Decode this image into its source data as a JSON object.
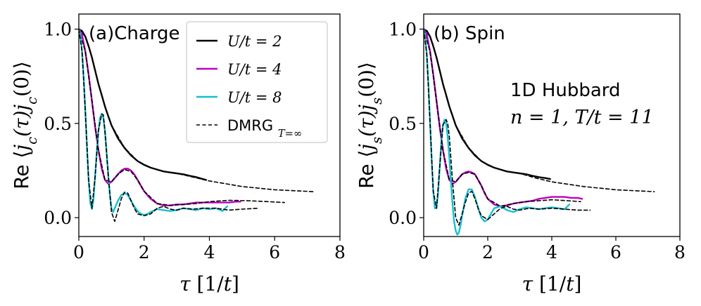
{
  "chart_data": [
    {
      "type": "line",
      "panel_label": "(a)Charge",
      "ylabel_prefix": "Re",
      "ylabel": "⟨j_c(τ) j_c(0)⟩",
      "xlabel": "τ [1/t]",
      "xlim": [
        0,
        8
      ],
      "ylim": [
        -0.1,
        1.08
      ],
      "xticks": [
        "0",
        "2",
        "4",
        "6",
        "8"
      ],
      "yticks": [
        "0.0",
        "0.5",
        "1.0"
      ],
      "legend": {
        "position": "top-right",
        "entries": [
          {
            "label": "U/t = 2",
            "color": "#000000",
            "style": "solid"
          },
          {
            "label": "U/t = 4",
            "color": "#bf00bf",
            "style": "solid"
          },
          {
            "label": "U/t = 8",
            "color": "#17becf",
            "style": "solid"
          },
          {
            "label": "DMRG",
            "sub": "T=∞",
            "color": "#000000",
            "style": "dashed"
          }
        ]
      },
      "series": [
        {
          "name": "U/t = 2",
          "color": "#000000",
          "style": "solid",
          "x": [
            0,
            0.1,
            0.2,
            0.3,
            0.4,
            0.5,
            0.6,
            0.7,
            0.8,
            0.9,
            1.0,
            1.2,
            1.4,
            1.6,
            1.8,
            2.0,
            2.2,
            2.4,
            2.6,
            2.8,
            3.0,
            3.2,
            3.4,
            3.6,
            3.8,
            3.9
          ],
          "y": [
            1.0,
            0.99,
            0.96,
            0.91,
            0.85,
            0.78,
            0.71,
            0.65,
            0.59,
            0.54,
            0.49,
            0.42,
            0.37,
            0.33,
            0.3,
            0.28,
            0.265,
            0.255,
            0.245,
            0.24,
            0.235,
            0.23,
            0.222,
            0.215,
            0.205,
            0.2
          ]
        },
        {
          "name": "U/t = 2 DMRG",
          "color": "#000000",
          "style": "dashed",
          "x": [
            0,
            0.2,
            0.4,
            0.6,
            0.8,
            1.0,
            1.4,
            1.8,
            2.2,
            2.6,
            3.0,
            3.5,
            4.0,
            5.0,
            6.0,
            7.2
          ],
          "y": [
            1.0,
            0.96,
            0.85,
            0.71,
            0.59,
            0.49,
            0.37,
            0.3,
            0.265,
            0.245,
            0.235,
            0.215,
            0.195,
            0.165,
            0.148,
            0.138
          ]
        },
        {
          "name": "U/t = 4",
          "color": "#bf00bf",
          "style": "solid",
          "x": [
            0,
            0.1,
            0.2,
            0.3,
            0.4,
            0.5,
            0.6,
            0.7,
            0.8,
            0.9,
            1.0,
            1.1,
            1.2,
            1.3,
            1.4,
            1.5,
            1.6,
            1.7,
            1.8,
            1.9,
            2.0,
            2.2,
            2.4,
            2.6,
            2.8,
            3.0,
            3.2,
            3.4,
            3.6,
            3.8,
            4.0,
            4.2,
            4.4,
            4.6,
            4.8,
            4.95
          ],
          "y": [
            1.0,
            0.97,
            0.88,
            0.76,
            0.62,
            0.48,
            0.36,
            0.26,
            0.2,
            0.18,
            0.19,
            0.21,
            0.23,
            0.25,
            0.26,
            0.26,
            0.25,
            0.23,
            0.2,
            0.17,
            0.14,
            0.1,
            0.075,
            0.065,
            0.065,
            0.07,
            0.07,
            0.075,
            0.08,
            0.08,
            0.08,
            0.08,
            0.08,
            0.08,
            0.085,
            0.085
          ]
        },
        {
          "name": "U/t = 4 DMRG",
          "color": "#000000",
          "style": "dashed",
          "x": [
            0,
            0.2,
            0.4,
            0.6,
            0.8,
            1.0,
            1.2,
            1.4,
            1.6,
            1.8,
            2.0,
            2.4,
            2.8,
            3.2,
            3.6,
            4.0,
            4.6,
            5.2,
            5.8,
            6.3
          ],
          "y": [
            1.0,
            0.88,
            0.62,
            0.36,
            0.2,
            0.19,
            0.23,
            0.255,
            0.245,
            0.2,
            0.14,
            0.075,
            0.065,
            0.07,
            0.075,
            0.085,
            0.092,
            0.09,
            0.085,
            0.08
          ]
        },
        {
          "name": "U/t = 8",
          "color": "#17becf",
          "style": "solid",
          "x": [
            0,
            0.05,
            0.1,
            0.15,
            0.2,
            0.25,
            0.3,
            0.35,
            0.4,
            0.45,
            0.5,
            0.55,
            0.6,
            0.65,
            0.7,
            0.75,
            0.8,
            0.85,
            0.9,
            0.95,
            1.0,
            1.05,
            1.1,
            1.15,
            1.2,
            1.3,
            1.4,
            1.5,
            1.6,
            1.7,
            1.8,
            1.9,
            2.0,
            2.1,
            2.2,
            2.4,
            2.6,
            2.8,
            3.0,
            3.2,
            3.4,
            3.6,
            3.8,
            4.0,
            4.2,
            4.4,
            4.55
          ],
          "y": [
            1.0,
            0.97,
            0.88,
            0.74,
            0.56,
            0.37,
            0.2,
            0.08,
            0.045,
            0.1,
            0.22,
            0.35,
            0.46,
            0.53,
            0.55,
            0.53,
            0.46,
            0.35,
            0.23,
            0.12,
            0.05,
            0.03,
            0.05,
            0.07,
            0.09,
            0.12,
            0.13,
            0.12,
            0.09,
            0.06,
            0.035,
            0.02,
            0.015,
            0.02,
            0.03,
            0.045,
            0.04,
            0.035,
            0.04,
            0.05,
            0.045,
            0.04,
            0.05,
            0.045,
            0.05,
            0.035,
            0.06
          ]
        },
        {
          "name": "U/t = 8 DMRG",
          "color": "#000000",
          "style": "dashed",
          "x": [
            0,
            0.1,
            0.2,
            0.3,
            0.4,
            0.5,
            0.6,
            0.7,
            0.75,
            0.8,
            0.9,
            1.0,
            1.1,
            1.2,
            1.3,
            1.4,
            1.5,
            1.6,
            1.7,
            1.8,
            2.0,
            2.2,
            2.4,
            2.6,
            2.8,
            3.0,
            3.2,
            3.5,
            3.8,
            4.2,
            4.6,
            5.0,
            5.5
          ],
          "y": [
            1.0,
            0.88,
            0.56,
            0.2,
            0.05,
            0.22,
            0.46,
            0.55,
            0.545,
            0.46,
            0.23,
            0.03,
            -0.02,
            0.04,
            0.1,
            0.135,
            0.13,
            0.09,
            0.05,
            0.02,
            0.01,
            0.02,
            0.05,
            0.06,
            0.045,
            0.04,
            0.05,
            0.045,
            0.05,
            0.05,
            0.04,
            0.045,
            0.05
          ]
        }
      ]
    },
    {
      "type": "line",
      "panel_label": "(b) Spin",
      "ylabel_prefix": "Re",
      "ylabel": "⟨j_s(τ) j_s(0)⟩",
      "xlabel": "τ [1/t]",
      "xlim": [
        0,
        8
      ],
      "ylim": [
        -0.1,
        1.08
      ],
      "xticks": [
        "0",
        "2",
        "4",
        "6",
        "8"
      ],
      "yticks": [
        "0.0",
        "0.5",
        "1.0"
      ],
      "annotation_line1": "1D Hubbard",
      "annotation_line2": "n = 1,  T/t = 11",
      "series": [
        {
          "name": "U/t = 2",
          "color": "#000000",
          "style": "solid",
          "x": [
            0,
            0.1,
            0.2,
            0.3,
            0.4,
            0.5,
            0.6,
            0.7,
            0.8,
            0.9,
            1.0,
            1.2,
            1.4,
            1.6,
            1.8,
            2.0,
            2.2,
            2.4,
            2.6,
            2.8,
            3.0,
            3.2,
            3.4,
            3.6,
            3.8,
            3.95
          ],
          "y": [
            1.0,
            0.99,
            0.96,
            0.91,
            0.85,
            0.78,
            0.71,
            0.65,
            0.59,
            0.54,
            0.49,
            0.42,
            0.37,
            0.33,
            0.3,
            0.28,
            0.265,
            0.255,
            0.245,
            0.24,
            0.235,
            0.23,
            0.222,
            0.215,
            0.21,
            0.205
          ]
        },
        {
          "name": "U/t = 2 DMRG",
          "color": "#000000",
          "style": "dashed",
          "x": [
            0,
            0.2,
            0.4,
            0.6,
            0.8,
            1.0,
            1.4,
            1.8,
            2.2,
            2.6,
            3.0,
            3.5,
            4.0,
            5.0,
            6.0,
            7.2
          ],
          "y": [
            1.0,
            0.96,
            0.85,
            0.71,
            0.59,
            0.49,
            0.37,
            0.3,
            0.265,
            0.245,
            0.235,
            0.21,
            0.19,
            0.165,
            0.148,
            0.138
          ]
        },
        {
          "name": "U/t = 4",
          "color": "#bf00bf",
          "style": "solid",
          "x": [
            0,
            0.1,
            0.2,
            0.3,
            0.4,
            0.5,
            0.6,
            0.7,
            0.8,
            0.9,
            1.0,
            1.1,
            1.2,
            1.3,
            1.4,
            1.5,
            1.6,
            1.7,
            1.8,
            1.9,
            2.0,
            2.2,
            2.4,
            2.6,
            2.8,
            3.0,
            3.2,
            3.4,
            3.6,
            3.8,
            4.0,
            4.2,
            4.4,
            4.6,
            4.8,
            4.95
          ],
          "y": [
            1.0,
            0.97,
            0.88,
            0.76,
            0.62,
            0.48,
            0.36,
            0.26,
            0.2,
            0.18,
            0.19,
            0.21,
            0.23,
            0.24,
            0.245,
            0.24,
            0.23,
            0.2,
            0.17,
            0.13,
            0.1,
            0.07,
            0.06,
            0.065,
            0.075,
            0.08,
            0.085,
            0.09,
            0.1,
            0.105,
            0.11,
            0.11,
            0.11,
            0.105,
            0.105,
            0.1
          ]
        },
        {
          "name": "U/t = 4 DMRG",
          "color": "#000000",
          "style": "dashed",
          "x": [
            0,
            0.2,
            0.4,
            0.6,
            0.8,
            1.0,
            1.2,
            1.4,
            1.6,
            1.8,
            2.0,
            2.4,
            2.8,
            3.2,
            3.6,
            4.0,
            4.5,
            4.9
          ],
          "y": [
            1.0,
            0.88,
            0.62,
            0.36,
            0.2,
            0.19,
            0.23,
            0.24,
            0.23,
            0.17,
            0.1,
            0.06,
            0.075,
            0.085,
            0.09,
            0.095,
            0.09,
            0.085
          ]
        },
        {
          "name": "U/t = 8",
          "color": "#17becf",
          "style": "solid",
          "x": [
            0,
            0.05,
            0.1,
            0.15,
            0.2,
            0.25,
            0.3,
            0.35,
            0.4,
            0.45,
            0.5,
            0.55,
            0.6,
            0.65,
            0.7,
            0.75,
            0.8,
            0.85,
            0.9,
            0.95,
            1.0,
            1.05,
            1.1,
            1.15,
            1.2,
            1.3,
            1.4,
            1.5,
            1.6,
            1.7,
            1.8,
            1.9,
            2.0,
            2.1,
            2.2,
            2.4,
            2.6,
            2.8,
            3.0,
            3.2,
            3.4,
            3.6,
            3.8,
            4.0,
            4.2,
            4.4,
            4.55
          ],
          "y": [
            1.0,
            0.96,
            0.86,
            0.7,
            0.5,
            0.3,
            0.14,
            0.05,
            0.05,
            0.13,
            0.27,
            0.4,
            0.49,
            0.52,
            0.5,
            0.43,
            0.32,
            0.19,
            0.07,
            -0.02,
            -0.07,
            -0.09,
            -0.08,
            -0.04,
            0.01,
            0.1,
            0.15,
            0.15,
            0.11,
            0.05,
            0.0,
            -0.02,
            -0.01,
            0.02,
            0.05,
            0.06,
            0.04,
            0.03,
            0.045,
            0.055,
            0.05,
            0.045,
            0.05,
            0.055,
            0.05,
            0.045,
            0.07
          ]
        },
        {
          "name": "U/t = 8 DMRG",
          "color": "#000000",
          "style": "dashed",
          "x": [
            0,
            0.1,
            0.2,
            0.3,
            0.4,
            0.5,
            0.6,
            0.7,
            0.75,
            0.8,
            0.9,
            1.0,
            1.1,
            1.2,
            1.3,
            1.4,
            1.5,
            1.6,
            1.7,
            1.8,
            2.0,
            2.2,
            2.4,
            2.6,
            2.8,
            3.0,
            3.3,
            3.6,
            4.0,
            4.4,
            4.8,
            5.2
          ],
          "y": [
            1.0,
            0.86,
            0.5,
            0.14,
            0.05,
            0.27,
            0.49,
            0.52,
            0.5,
            0.43,
            0.19,
            0.0,
            -0.04,
            0.02,
            0.08,
            0.13,
            0.14,
            0.1,
            0.05,
            0.01,
            -0.01,
            0.02,
            0.05,
            0.06,
            0.045,
            0.04,
            0.05,
            0.045,
            0.05,
            0.045,
            0.04,
            0.04
          ]
        }
      ]
    }
  ]
}
